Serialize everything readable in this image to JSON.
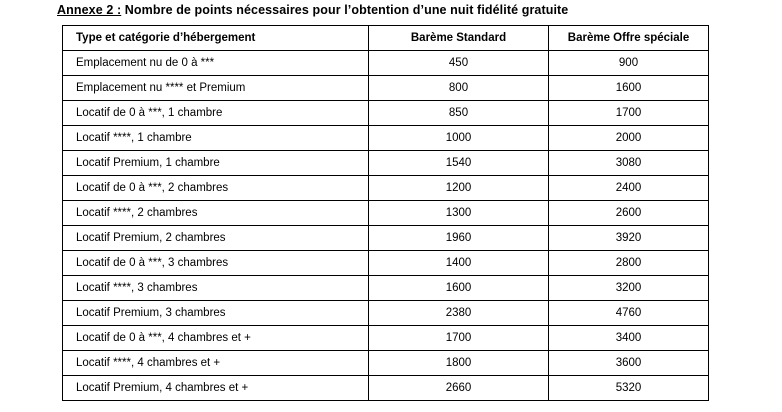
{
  "title": {
    "label": "Annexe 2 :",
    "text": "Nombre de points nécessaires pour l’obtention d’une nuit fidélité gratuite"
  },
  "table": {
    "headers": {
      "type": "Type et catégorie d’hébergement",
      "standard": "Barème Standard",
      "special": "Barème Offre spéciale"
    },
    "rows": [
      {
        "type": "Emplacement nu de 0 à ***",
        "standard": "450",
        "special": "900"
      },
      {
        "type": "Emplacement nu **** et Premium",
        "standard": "800",
        "special": "1600"
      },
      {
        "type": "Locatif de 0 à ***, 1 chambre",
        "standard": "850",
        "special": "1700"
      },
      {
        "type": "Locatif ****, 1 chambre",
        "standard": "1000",
        "special": "2000"
      },
      {
        "type": "Locatif Premium, 1 chambre",
        "standard": "1540",
        "special": "3080"
      },
      {
        "type": "Locatif de 0 à ***, 2 chambres",
        "standard": "1200",
        "special": "2400"
      },
      {
        "type": "Locatif ****, 2 chambres",
        "standard": "1300",
        "special": "2600"
      },
      {
        "type": "Locatif Premium, 2 chambres",
        "standard": "1960",
        "special": "3920"
      },
      {
        "type": "Locatif de 0 à ***, 3 chambres",
        "standard": "1400",
        "special": "2800"
      },
      {
        "type": "Locatif ****, 3 chambres",
        "standard": "1600",
        "special": "3200"
      },
      {
        "type": "Locatif Premium, 3 chambres",
        "standard": "2380",
        "special": "4760"
      },
      {
        "type": "Locatif de 0 à ***, 4 chambres et +",
        "standard": "1700",
        "special": "3400"
      },
      {
        "type": "Locatif ****, 4 chambres et +",
        "standard": "1800",
        "special": "3600"
      },
      {
        "type": "Locatif Premium, 4 chambres et +",
        "standard": "2660",
        "special": "5320"
      }
    ]
  }
}
